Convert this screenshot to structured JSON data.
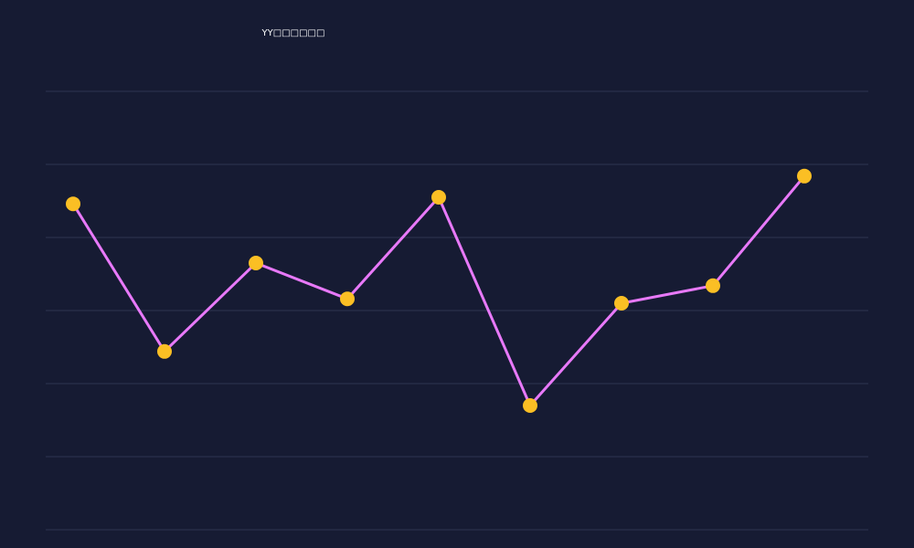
{
  "chart_data": {
    "type": "line",
    "title": "YY□□□□□□",
    "categories": [
      null,
      null,
      null,
      null,
      null,
      null,
      null,
      null,
      null
    ],
    "series": [
      {
        "color": "#e879f9",
        "marker_color": "#fbbf24",
        "values": [
          4.46,
          2.44,
          3.65,
          3.16,
          4.55,
          1.7,
          3.1,
          3.34,
          4.84
        ]
      }
    ],
    "ylim": [
      0,
      6
    ],
    "yticks": [
      0,
      1,
      2,
      3,
      4,
      5,
      6
    ],
    "grid": true
  }
}
